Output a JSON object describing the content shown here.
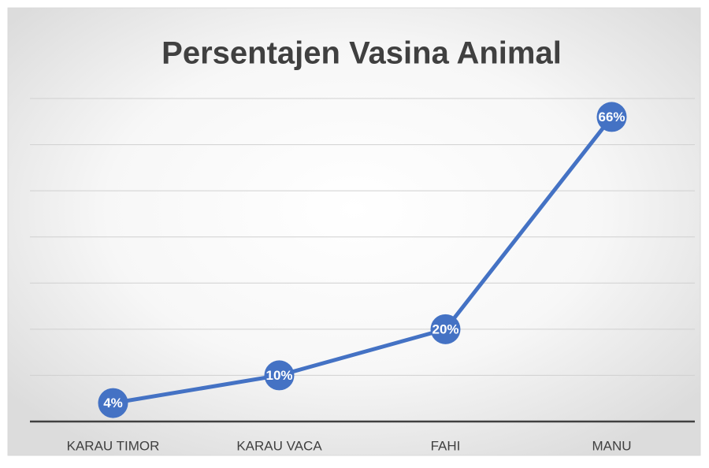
{
  "chart_data": {
    "type": "line",
    "title": "Persentajen Vasina Animal",
    "categories": [
      "KARAU TIMOR",
      "KARAU VACA",
      "FAHI",
      "MANU"
    ],
    "values": [
      4,
      10,
      20,
      66
    ],
    "value_labels": [
      "4%",
      "10%",
      "20%",
      "66%"
    ],
    "color": "#4472c4",
    "ylim": [
      0,
      70
    ],
    "yticks": [
      0,
      10,
      20,
      30,
      40,
      50,
      60,
      70
    ],
    "grid": true
  }
}
